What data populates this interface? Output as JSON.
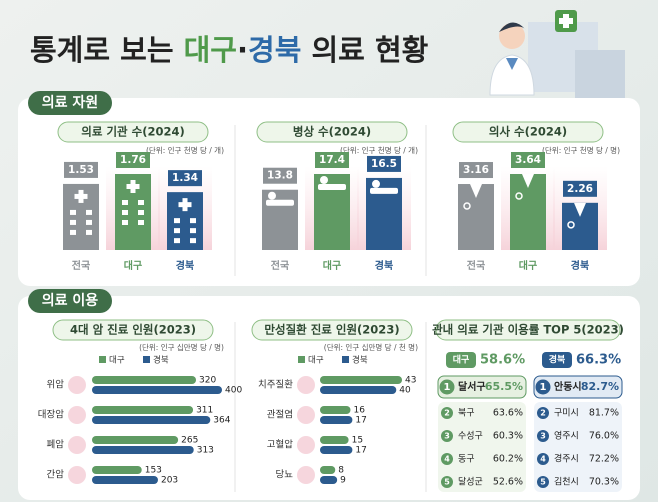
{
  "title": {
    "lead": "통계로 보는",
    "region1": "대구",
    "dot": "·",
    "region2": "경북",
    "tail": "의료 현황"
  },
  "resources": {
    "label": "의료 자원",
    "colors": [
      "#8d9296",
      "#5f9a63",
      "#2c5b8e"
    ],
    "panels": [
      {
        "title": "의료 기관 수(2024)",
        "unit": "(단위: 인구 천명 당 / 개)",
        "categories": [
          "전국",
          "대구",
          "경북"
        ],
        "values": [
          1.53,
          1.76,
          1.34
        ]
      },
      {
        "title": "병상 수(2024)",
        "unit": "(단위: 인구 천명 당 / 개)",
        "categories": [
          "전국",
          "대구",
          "경북"
        ],
        "values": [
          13.8,
          17.4,
          16.5
        ]
      },
      {
        "title": "의사 수(2024)",
        "unit": "(단위: 인구 천명 당 / 명)",
        "categories": [
          "전국",
          "대구",
          "경북"
        ],
        "values": [
          3.16,
          3.64,
          2.26
        ]
      }
    ]
  },
  "usage": {
    "label": "의료 이용",
    "colors": [
      "#5f9a63",
      "#2c5b8e"
    ],
    "panels": [
      {
        "title": "4대 암 진료 인원(2023)",
        "unit": "(단위: 인구 십만명 당 / 명)",
        "legend": [
          "대구",
          "경북"
        ],
        "categories": [
          "위암",
          "대장암",
          "폐암",
          "간암"
        ],
        "series": [
          [
            320,
            311,
            265,
            153
          ],
          [
            400,
            364,
            313,
            203
          ]
        ]
      },
      {
        "title": "만성질환 진료 인원(2023)",
        "unit": "(단위: 인구 십만명 당 / 천 명)",
        "legend": [
          "대구",
          "경북"
        ],
        "categories": [
          "치주질환",
          "관절염",
          "고혈압",
          "당뇨"
        ],
        "series": [
          [
            43,
            16,
            15,
            8
          ],
          [
            40,
            17,
            17,
            9
          ]
        ]
      }
    ],
    "top5": {
      "title": "관내 의료 기관 이용률 TOP 5(2023)",
      "groups": [
        {
          "name": "대구",
          "rate": "58.6%",
          "items": [
            {
              "rank": 1,
              "name": "달서구",
              "rate": "65.5%"
            },
            {
              "rank": 2,
              "name": "북구",
              "rate": "63.6%"
            },
            {
              "rank": 3,
              "name": "수성구",
              "rate": "60.3%"
            },
            {
              "rank": 4,
              "name": "동구",
              "rate": "60.2%"
            },
            {
              "rank": 5,
              "name": "달성군",
              "rate": "52.6%"
            }
          ]
        },
        {
          "name": "경북",
          "rate": "66.3%",
          "items": [
            {
              "rank": 1,
              "name": "안동시",
              "rate": "82.7%"
            },
            {
              "rank": 2,
              "name": "구미시",
              "rate": "81.7%"
            },
            {
              "rank": 3,
              "name": "영주시",
              "rate": "76.0%"
            },
            {
              "rank": 4,
              "name": "경주시",
              "rate": "72.2%"
            },
            {
              "rank": 5,
              "name": "김천시",
              "rate": "70.3%"
            }
          ]
        }
      ]
    }
  }
}
